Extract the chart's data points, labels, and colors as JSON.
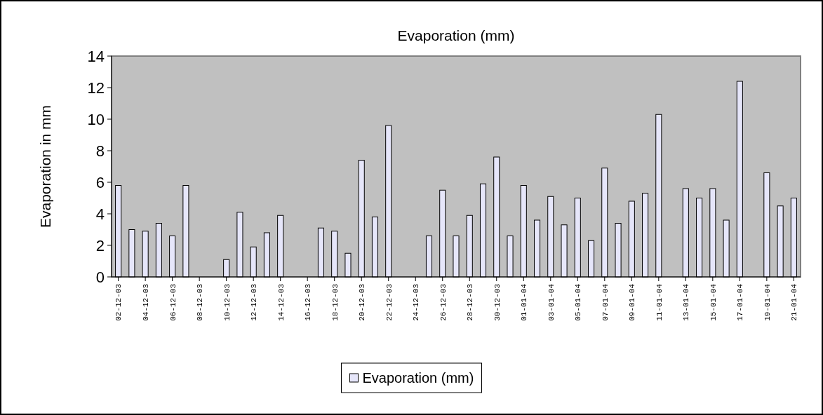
{
  "chart_data": {
    "type": "bar",
    "title": "Evaporation (mm)",
    "ylabel": "Evaporation in mm",
    "categories": [
      "02-12-03",
      null,
      "04-12-03",
      null,
      "06-12-03",
      null,
      "08-12-03",
      null,
      "10-12-03",
      null,
      "12-12-03",
      null,
      "14-12-03",
      null,
      "16-12-03",
      null,
      "18-12-03",
      null,
      "20-12-03",
      null,
      "22-12-03",
      null,
      "24-12-03",
      null,
      "26-12-03",
      null,
      "28-12-03",
      null,
      "30-12-03",
      null,
      "01-01-04",
      null,
      "03-01-04",
      null,
      "05-01-04",
      null,
      "07-01-04",
      null,
      "09-01-04",
      null,
      "11-01-04",
      null,
      "13-01-04",
      null,
      "15-01-04",
      null,
      "17-01-04",
      null,
      "19-01-04",
      null,
      "21-01-04"
    ],
    "series": [
      {
        "name": "Evaporation (mm)",
        "color": "#e6e6fa",
        "values": [
          5.8,
          3.0,
          2.9,
          3.4,
          2.6,
          5.8,
          null,
          null,
          1.1,
          4.1,
          1.9,
          2.8,
          3.9,
          null,
          null,
          3.1,
          2.9,
          1.5,
          7.4,
          3.8,
          9.6,
          null,
          null,
          2.6,
          5.5,
          2.6,
          3.9,
          5.9,
          7.6,
          2.6,
          5.8,
          3.6,
          5.1,
          3.3,
          5.0,
          2.3,
          6.9,
          3.4,
          4.8,
          5.3,
          10.3,
          null,
          5.6,
          5.0,
          5.6,
          3.6,
          12.4,
          null,
          6.6,
          4.5,
          5.0
        ]
      }
    ],
    "ylim": [
      0,
      14
    ],
    "yticks": [
      0,
      2,
      4,
      6,
      8,
      10,
      12,
      14
    ],
    "grid": false,
    "legend": "bottom"
  }
}
